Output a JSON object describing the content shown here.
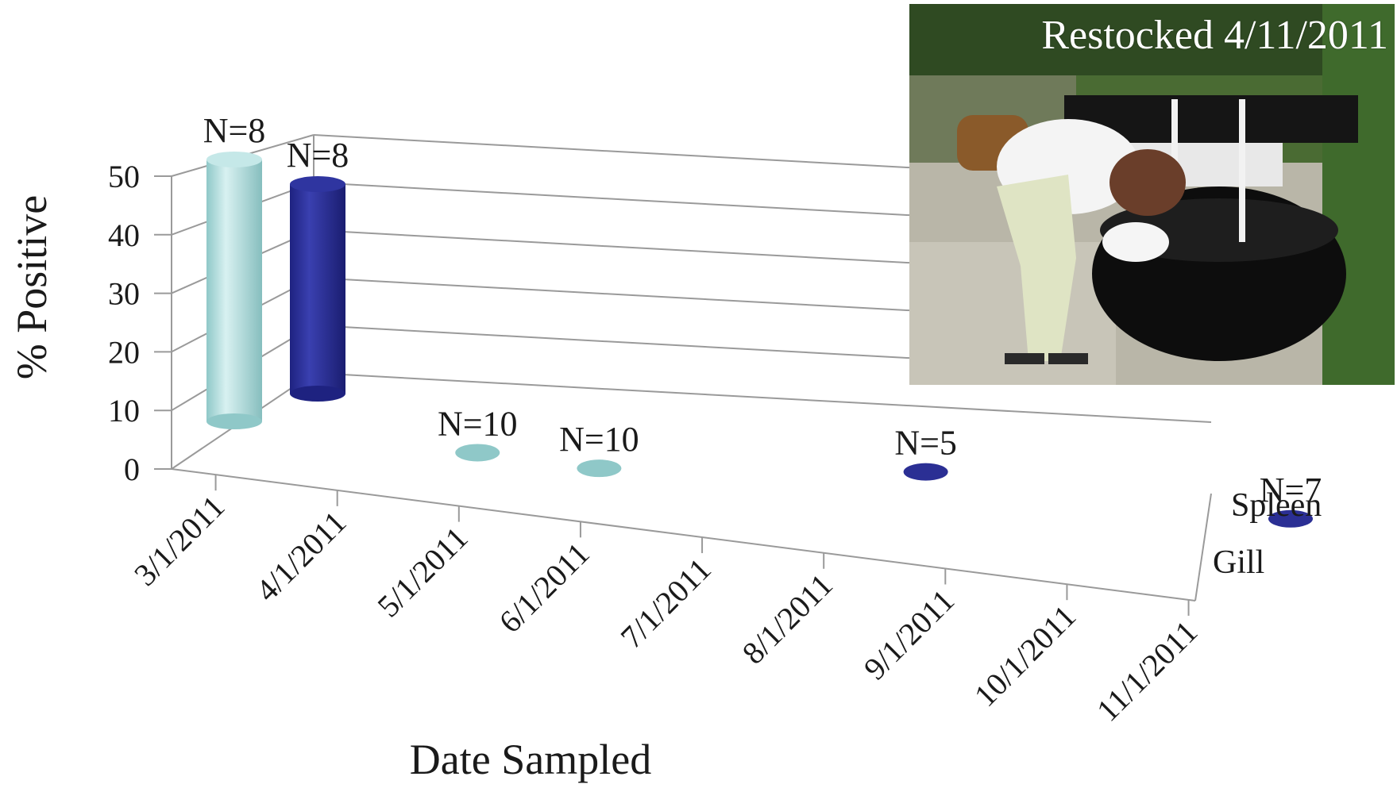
{
  "chart_data": {
    "type": "bar",
    "subtype": "3d-cylinder",
    "xlabel": "Date Sampled",
    "ylabel": "% Positive",
    "ylim": [
      0,
      50
    ],
    "yticks": [
      "0",
      "10",
      "20",
      "30",
      "40",
      "50"
    ],
    "categories": [
      "3/1/2011",
      "4/1/2011",
      "5/1/2011",
      "6/1/2011",
      "7/1/2011",
      "8/1/2011",
      "9/1/2011",
      "10/1/2011",
      "11/1/2011"
    ],
    "series": [
      {
        "name": "Gill",
        "color": "#a8dada",
        "values": [
          50,
          null,
          0,
          0,
          null,
          null,
          null,
          null,
          null
        ],
        "n_labels": [
          "N=8",
          null,
          "N=10",
          "N=10",
          null,
          null,
          null,
          null,
          null
        ]
      },
      {
        "name": "Spleen",
        "color": "#2b2f94",
        "values": [
          40,
          null,
          null,
          null,
          null,
          0,
          null,
          null,
          0
        ],
        "n_labels": [
          "N=8",
          null,
          null,
          null,
          null,
          "N=5",
          null,
          null,
          "N=7"
        ]
      }
    ],
    "grid": true
  },
  "photo": {
    "caption": "Restocked 4/11/2011"
  }
}
